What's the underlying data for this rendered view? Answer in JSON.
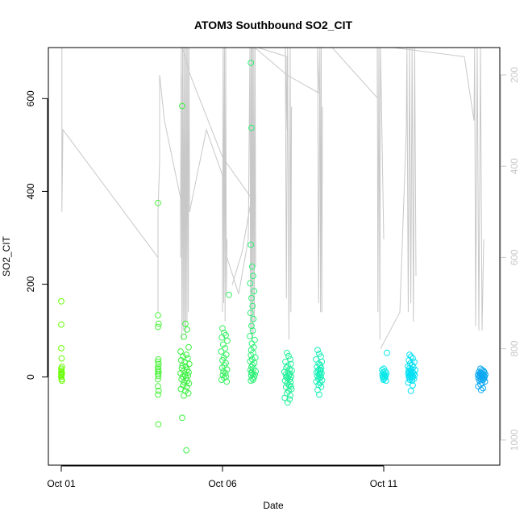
{
  "chart_data": {
    "type": "scatter",
    "title": "ATOM3 Southbound SO2_CIT",
    "xlabel": "Date",
    "ylabel": "SO2_CIT",
    "x_unit": "days after Sep 30",
    "xlim": [
      0.6,
      14.6
    ],
    "ylim": [
      -190,
      710
    ],
    "x_ticks": [
      {
        "value": 1,
        "label": "Oct 01"
      },
      {
        "value": 6,
        "label": "Oct 06"
      },
      {
        "value": 11,
        "label": "Oct 11"
      }
    ],
    "y_ticks": [
      0,
      200,
      400,
      600
    ],
    "right_axis": {
      "label": "",
      "color": "#c8c8c8",
      "reversed": true,
      "lim": [
        1055,
        140
      ],
      "ticks": [
        200,
        400,
        600,
        800,
        1000
      ]
    },
    "point_colors": [
      "#7CFC3E",
      "#4EF04E",
      "#2CF08A",
      "#19F0C0",
      "#00E5F0",
      "#0AA8F0"
    ],
    "series": [
      {
        "name": "",
        "color": "#66FF00",
        "x": [
          1.0,
          1.0,
          1.0,
          1.01,
          1.02,
          1.0,
          1.01,
          1.0,
          1.02,
          1.01,
          1.0,
          1.0,
          1.01,
          1.02
        ],
        "y": [
          163,
          113,
          62,
          40,
          22,
          18,
          14,
          10,
          8,
          5,
          3,
          0,
          -5,
          -8
        ]
      },
      {
        "name": "",
        "color": "#4CF23C",
        "x": [
          4.0,
          4.0,
          4.02,
          4.0,
          4.01,
          4.0,
          4.02,
          4.0,
          4.01,
          4.0,
          4.02,
          4.0,
          4.01,
          4.0,
          4.0,
          4.02,
          4.0,
          4.01
        ],
        "y": [
          375,
          133,
          115,
          108,
          38,
          33,
          28,
          22,
          18,
          14,
          10,
          6,
          2,
          -5,
          -20,
          -30,
          -38,
          -102
        ]
      },
      {
        "name": "",
        "color": "#3CF040",
        "x": [
          4.75,
          4.85,
          4.9,
          4.8,
          4.95,
          4.7,
          4.88,
          4.78,
          4.92,
          4.72,
          4.83,
          4.97,
          4.76,
          4.86,
          4.74,
          4.9,
          4.8,
          4.95,
          4.7,
          4.84,
          4.93,
          4.77,
          4.87,
          4.73,
          4.91,
          4.81,
          4.96,
          4.78,
          4.89,
          4.71,
          4.85,
          4.94,
          4.8,
          4.75,
          4.88
        ],
        "y": [
          584,
          115,
          102,
          87,
          64,
          55,
          48,
          44,
          40,
          36,
          32,
          28,
          25,
          22,
          19,
          16,
          13,
          10,
          8,
          5,
          3,
          1,
          -2,
          -5,
          -8,
          -11,
          -14,
          -18,
          -22,
          -26,
          -30,
          -35,
          -40,
          -88,
          -158
        ]
      },
      {
        "name": "",
        "color": "#38F060",
        "x": [
          6.2,
          6.0,
          6.05,
          6.1,
          5.98,
          6.15,
          6.02,
          6.08,
          5.96,
          6.12,
          6.04,
          6.0,
          6.1,
          6.06,
          5.99,
          6.14,
          6.03,
          6.09,
          6.01,
          6.11,
          6.05,
          5.97,
          6.13
        ],
        "y": [
          177,
          105,
          95,
          90,
          85,
          78,
          70,
          62,
          55,
          48,
          42,
          36,
          30,
          25,
          20,
          16,
          12,
          8,
          4,
          1,
          -2,
          -6,
          -10
        ]
      },
      {
        "name": "",
        "color": "#30F078",
        "x": [
          6.88,
          6.9,
          6.88,
          6.92,
          6.95,
          6.86,
          6.98,
          6.9,
          6.93,
          6.87,
          6.96,
          6.9,
          6.94,
          6.85,
          7.0,
          6.91,
          6.97,
          6.89,
          6.95,
          6.88,
          7.02,
          6.92,
          6.86,
          6.99,
          6.93,
          6.9,
          6.96,
          6.87,
          7.03,
          6.91,
          6.94,
          6.89,
          6.98,
          6.92,
          6.95,
          6.88,
          7.0,
          6.9
        ],
        "y": [
          677,
          537,
          285,
          238,
          218,
          202,
          185,
          170,
          153,
          138,
          125,
          110,
          100,
          88,
          80,
          72,
          64,
          58,
          52,
          47,
          42,
          38,
          34,
          30,
          26,
          22,
          18,
          15,
          12,
          9,
          6,
          3,
          0,
          -3,
          -6,
          -8,
          5,
          10
        ]
      },
      {
        "name": "",
        "color": "#23F09A",
        "x": [
          8.0,
          8.05,
          8.1,
          7.95,
          8.12,
          8.02,
          7.98,
          8.08,
          8.15,
          7.92,
          8.04,
          8.1,
          7.96,
          8.06,
          8.13,
          7.99,
          8.03,
          8.09,
          7.94,
          8.11,
          8.01,
          8.07,
          7.97,
          8.14,
          8.05,
          8.0,
          8.1,
          7.93,
          8.08,
          8.02,
          8.12,
          7.98
        ],
        "y": [
          52,
          45,
          38,
          33,
          28,
          24,
          20,
          17,
          14,
          11,
          9,
          7,
          5,
          3,
          1,
          -1,
          -3,
          -5,
          -8,
          -11,
          -14,
          -18,
          -22,
          -26,
          -30,
          -35,
          -40,
          -45,
          -48,
          -55,
          -20,
          0
        ]
      },
      {
        "name": "",
        "color": "#19F0B8",
        "x": [
          8.95,
          9.0,
          9.05,
          8.9,
          9.08,
          8.98,
          9.03,
          8.93,
          9.06,
          9.0,
          8.96,
          9.04,
          8.92,
          9.07,
          8.99,
          9.02,
          8.94,
          9.05,
          9.01,
          8.97,
          9.09,
          8.91,
          9.03,
          8.98,
          9.06,
          8.95,
          9.0,
          9.04
        ],
        "y": [
          58,
          50,
          44,
          38,
          33,
          29,
          26,
          22,
          19,
          16,
          14,
          12,
          10,
          8,
          6,
          4,
          2,
          0,
          -2,
          -4,
          -7,
          -10,
          -13,
          -17,
          -21,
          -28,
          -38,
          15
        ]
      },
      {
        "name": "",
        "color": "#08E8E8",
        "x": [
          11.1,
          11.0,
          10.95,
          11.05,
          10.98,
          11.08,
          11.02,
          10.96,
          11.06,
          11.0,
          10.97,
          11.04,
          11.01,
          10.99,
          11.07,
          11.03
        ],
        "y": [
          52,
          18,
          15,
          12,
          10,
          8,
          6,
          5,
          3,
          2,
          0,
          -2,
          -4,
          -6,
          -8,
          1
        ]
      },
      {
        "name": "",
        "color": "#05E0F4",
        "x": [
          11.8,
          11.85,
          11.9,
          11.78,
          11.95,
          11.82,
          11.88,
          11.75,
          11.92,
          11.8,
          11.86,
          11.98,
          11.77,
          11.84,
          11.9,
          11.8,
          11.93,
          11.76,
          11.87,
          11.82,
          11.96,
          11.79,
          11.89,
          11.83,
          11.91,
          11.78,
          11.85,
          11.94,
          11.81,
          11.88,
          11.76,
          11.9,
          11.84,
          11.8
        ],
        "y": [
          48,
          44,
          40,
          36,
          32,
          29,
          26,
          23,
          21,
          19,
          17,
          15,
          13,
          12,
          10,
          9,
          8,
          7,
          6,
          5,
          4,
          3,
          2,
          1,
          0,
          -1,
          -2,
          -4,
          -6,
          -8,
          -12,
          -18,
          -30,
          11
        ]
      },
      {
        "name": "",
        "color": "#0BA8F2",
        "x": [
          14.0,
          14.05,
          14.1,
          13.95,
          14.12,
          14.02,
          13.98,
          14.08,
          14.0,
          14.15,
          13.92,
          14.04,
          14.1,
          13.96,
          14.06,
          14.13,
          13.99,
          14.03,
          14.09,
          13.94,
          14.11,
          14.01,
          14.07,
          13.97,
          14.14,
          14.05,
          14.0,
          13.93,
          14.08,
          14.02
        ],
        "y": [
          18,
          15,
          13,
          11,
          10,
          9,
          8,
          7,
          6,
          5,
          4,
          4,
          3,
          2,
          2,
          1,
          0,
          -1,
          -2,
          -3,
          -4,
          -5,
          -6,
          -8,
          -10,
          -13,
          -16,
          -20,
          -24,
          -28
        ]
      }
    ],
    "pressure_trace": {
      "color": "#c8c8c8",
      "axis": "right",
      "paths": [
        [
          [
            1.02,
            500
          ],
          [
            1.02,
            140
          ],
          [
            1.02,
            500
          ],
          [
            1.05,
            320
          ],
          [
            4.0,
            600
          ],
          [
            4.0,
            720
          ],
          [
            4.0,
            500
          ],
          [
            4.05,
            390
          ],
          [
            4.05,
            200
          ],
          [
            4.2,
            300
          ],
          [
            4.7,
            470
          ],
          [
            4.7,
            560
          ],
          [
            4.72,
            140
          ]
        ],
        [
          [
            4.7,
            600
          ],
          [
            4.72,
            200
          ],
          [
            4.74,
            780
          ],
          [
            4.76,
            140
          ],
          [
            4.78,
            760
          ],
          [
            4.8,
            140
          ],
          [
            4.82,
            750
          ],
          [
            4.84,
            140
          ],
          [
            4.86,
            770
          ],
          [
            4.88,
            140
          ],
          [
            4.9,
            740
          ],
          [
            4.92,
            140
          ],
          [
            4.94,
            720
          ],
          [
            4.96,
            140
          ],
          [
            4.98,
            500
          ]
        ],
        [
          [
            4.98,
            500
          ],
          [
            5.5,
            320
          ],
          [
            6.0,
            420
          ],
          [
            6.0,
            720
          ],
          [
            6.02,
            140
          ],
          [
            6.04,
            700
          ],
          [
            6.06,
            140
          ],
          [
            6.08,
            740
          ],
          [
            6.1,
            140
          ],
          [
            6.12,
            680
          ],
          [
            6.14,
            560
          ]
        ],
        [
          [
            6.14,
            600
          ],
          [
            6.5,
            680
          ],
          [
            6.8,
            560
          ],
          [
            6.85,
            140
          ],
          [
            6.87,
            760
          ],
          [
            6.89,
            140
          ],
          [
            6.91,
            780
          ],
          [
            6.93,
            140
          ],
          [
            6.95,
            770
          ],
          [
            6.97,
            140
          ],
          [
            6.99,
            740
          ],
          [
            7.01,
            140
          ],
          [
            7.03,
            620
          ]
        ],
        [
          [
            6.3,
            660
          ],
          [
            6.6,
            590
          ],
          [
            6.9,
            470
          ],
          [
            6.9,
            140
          ]
        ],
        [
          [
            4.75,
            140
          ],
          [
            5.0,
            200
          ],
          [
            6.0,
            380
          ],
          [
            6.9,
            470
          ]
        ],
        [
          [
            7.1,
            140
          ],
          [
            8.0,
            160
          ],
          [
            8.0,
            320
          ],
          [
            7.95,
            140
          ],
          [
            7.98,
            690
          ],
          [
            8.02,
            140
          ],
          [
            8.06,
            780
          ],
          [
            8.1,
            140
          ],
          [
            8.12,
            720
          ],
          [
            8.14,
            270
          ]
        ],
        [
          [
            7.0,
            140
          ],
          [
            8.0,
            200
          ],
          [
            9.0,
            240
          ],
          [
            8.95,
            140
          ],
          [
            8.98,
            700
          ],
          [
            9.02,
            140
          ],
          [
            9.04,
            720
          ],
          [
            9.06,
            140
          ],
          [
            9.08,
            720
          ],
          [
            9.1,
            270
          ]
        ],
        [
          [
            9.4,
            140
          ],
          [
            10.8,
            250
          ],
          [
            10.8,
            140
          ],
          [
            10.82,
            720
          ],
          [
            10.85,
            140
          ],
          [
            10.88,
            780
          ],
          [
            10.9,
            140
          ],
          [
            11.0,
            560
          ]
        ],
        [
          [
            10.9,
            800
          ],
          [
            11.5,
            720
          ],
          [
            11.7,
            320
          ],
          [
            11.72,
            140
          ],
          [
            11.76,
            720
          ],
          [
            11.8,
            140
          ],
          [
            11.84,
            700
          ],
          [
            11.88,
            140
          ],
          [
            11.92,
            740
          ],
          [
            11.96,
            140
          ],
          [
            12.0,
            640
          ]
        ],
        [
          [
            11.3,
            140
          ],
          [
            13.5,
            160
          ],
          [
            13.8,
            300
          ],
          [
            13.82,
            140
          ],
          [
            13.85,
            750
          ],
          [
            13.9,
            140
          ],
          [
            13.95,
            760
          ],
          [
            14.0,
            140
          ],
          [
            14.05,
            760
          ],
          [
            14.1,
            560
          ]
        ]
      ]
    }
  }
}
